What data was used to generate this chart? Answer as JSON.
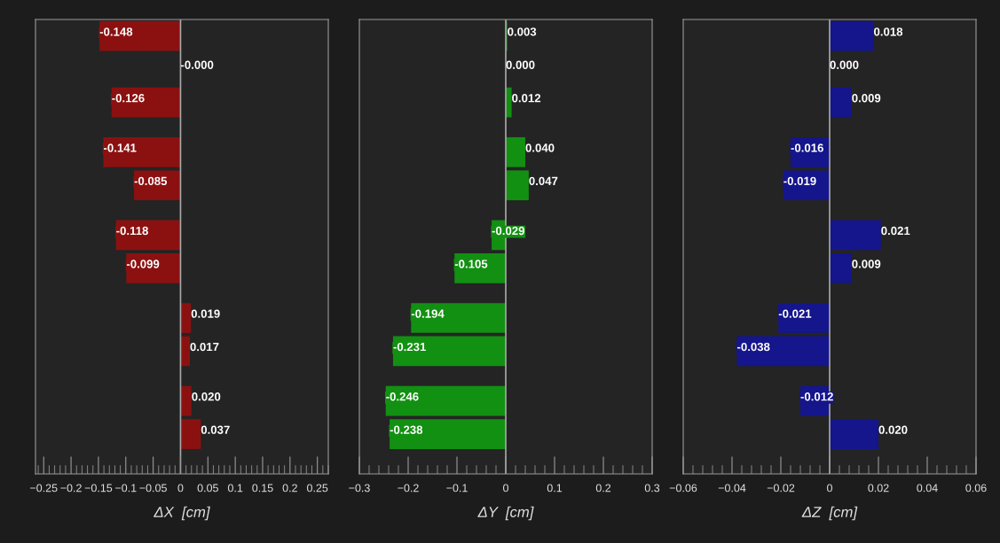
{
  "chart_data": [
    {
      "type": "bar",
      "orientation": "horizontal",
      "xlabel": "ΔX  [cm]",
      "tick_labels": "x",
      "categories": [
        null,
        null,
        null,
        null,
        null,
        null,
        null,
        null,
        null,
        null,
        null,
        null,
        null,
        null,
        null,
        null,
        null,
        null,
        null,
        null,
        null,
        null,
        null,
        null,
        null,
        null,
        null
      ],
      "values": [
        -0.148,
        null,
        0,
        null,
        -0.126,
        null,
        null,
        -0.141,
        null,
        -0.085,
        null,
        null,
        -0.118,
        null,
        -0.099,
        null,
        null,
        0.019,
        null,
        0.017,
        null,
        null,
        0.02,
        null,
        0.037,
        null,
        null
      ],
      "value_labels": [
        "-0.148",
        null,
        "-0.000",
        null,
        "-0.126",
        null,
        null,
        "-0.141",
        null,
        "-0.085",
        null,
        null,
        "-0.118",
        null,
        "-0.099",
        null,
        null,
        "0.019",
        null,
        "0.017",
        null,
        null,
        "0.020",
        null,
        "0.037",
        null,
        null
      ],
      "color": "#8b1111",
      "xlim": [
        -0.265,
        0.27
      ],
      "xticks": [
        {
          "value": -0.25,
          "label": "−0.25"
        },
        {
          "value": -0.2,
          "label": "−0.2"
        },
        {
          "value": -0.15,
          "label": "−0.15"
        },
        {
          "value": -0.1,
          "label": "−0.1"
        },
        {
          "value": -0.05,
          "label": "−0.05"
        },
        0,
        0.05,
        0.1,
        0.15,
        0.2,
        0.25
      ],
      "ref_lines": [
        {
          "axis": "x",
          "value": 0,
          "color": "#a8a8a8"
        }
      ]
    },
    {
      "type": "bar",
      "orientation": "horizontal",
      "xlabel": "ΔY  [cm]",
      "tick_labels": "x",
      "categories": [
        null,
        null,
        null,
        null,
        null,
        null,
        null,
        null,
        null,
        null,
        null,
        null,
        null,
        null,
        null,
        null,
        null,
        null,
        null,
        null,
        null,
        null,
        null,
        null,
        null,
        null,
        null
      ],
      "values": [
        0.003,
        null,
        0,
        null,
        0.012,
        null,
        null,
        0.04,
        null,
        0.047,
        null,
        null,
        -0.029,
        null,
        -0.105,
        null,
        null,
        -0.194,
        null,
        -0.231,
        null,
        null,
        -0.246,
        null,
        -0.238,
        null,
        null
      ],
      "value_labels": [
        "0.003",
        null,
        "0.000",
        null,
        "0.012",
        null,
        null,
        "0.040",
        null,
        "0.047",
        null,
        null,
        "-0.029",
        null,
        "-0.105",
        null,
        null,
        "-0.194",
        null,
        "-0.231",
        null,
        null,
        "-0.246",
        null,
        "-0.238",
        null,
        null
      ],
      "color": "#129012",
      "xlim": [
        -0.3,
        0.3
      ],
      "xticks": [
        {
          "value": -0.3,
          "label": "−0.3"
        },
        {
          "value": -0.2,
          "label": "−0.2"
        },
        {
          "value": -0.1,
          "label": "−0.1"
        },
        0,
        0.1,
        0.2,
        0.3
      ],
      "ref_lines": [
        {
          "axis": "x",
          "value": 0,
          "color": "#a8a8a8"
        }
      ]
    },
    {
      "type": "bar",
      "orientation": "horizontal",
      "xlabel": "ΔZ  [cm]",
      "tick_labels": "x",
      "categories": [
        null,
        null,
        null,
        null,
        null,
        null,
        null,
        null,
        null,
        null,
        null,
        null,
        null,
        null,
        null,
        null,
        null,
        null,
        null,
        null,
        null,
        null,
        null,
        null,
        null,
        null,
        null
      ],
      "values": [
        0.018,
        null,
        0,
        null,
        0.009,
        null,
        null,
        -0.016,
        null,
        -0.019,
        null,
        null,
        0.021,
        null,
        0.009,
        null,
        null,
        -0.021,
        null,
        -0.038,
        null,
        null,
        -0.012,
        null,
        0.02,
        null,
        null
      ],
      "value_labels": [
        "0.018",
        null,
        "0.000",
        null,
        "0.009",
        null,
        null,
        "-0.016",
        null,
        "-0.019",
        null,
        null,
        "0.021",
        null,
        "0.009",
        null,
        null,
        "-0.021",
        null,
        "-0.038",
        null,
        null,
        "-0.012",
        null,
        "0.020",
        null,
        null
      ],
      "color": "#15158c",
      "xlim": [
        -0.06,
        0.06
      ],
      "xticks": [
        {
          "value": -0.06,
          "label": "−0.06"
        },
        {
          "value": -0.04,
          "label": "−0.04"
        },
        {
          "value": -0.02,
          "label": "−0.02"
        },
        0,
        0.02,
        0.04,
        0.06
      ],
      "ref_lines": [
        {
          "axis": "x",
          "value": 0,
          "color": "#a8a8a8"
        }
      ]
    }
  ]
}
